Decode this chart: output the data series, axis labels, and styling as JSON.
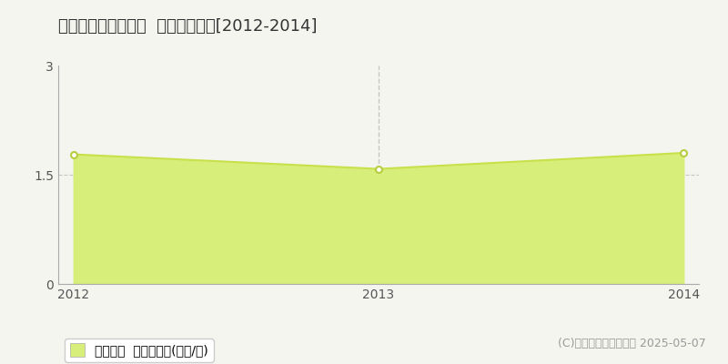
{
  "title": "南九州市川辺町小野  土地価格推移[2012-2014]",
  "years": [
    2012,
    2013,
    2014
  ],
  "values": [
    1.78,
    1.58,
    1.8
  ],
  "ylim": [
    0,
    3
  ],
  "yticks": [
    0,
    1.5,
    3
  ],
  "ytick_labels": [
    "0",
    "1.5",
    "3"
  ],
  "line_color": "#c8e04a",
  "fill_color": "#d8ee7a",
  "fill_alpha": 1.0,
  "marker_color": "#ffffff",
  "marker_edge_color": "#b8cc40",
  "bg_color": "#f5f5f0",
  "plot_bg_color": "#f5f5f0",
  "grid_color": "#bbbbbb",
  "dashed_line_x": 2013,
  "legend_label": "土地価格  平均坪単価(万円/坪)",
  "copyright_text": "(C)土地価格ドットコム 2025-05-07",
  "title_fontsize": 13,
  "tick_fontsize": 10,
  "legend_fontsize": 10,
  "copyright_fontsize": 9
}
